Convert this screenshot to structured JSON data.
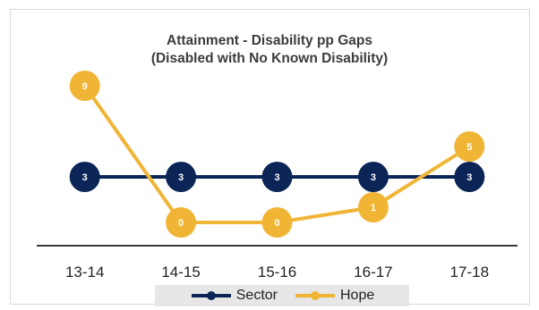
{
  "chart_data": {
    "type": "line",
    "title": "Attainment - Disability pp Gaps",
    "subtitle": "(Disabled with No Known Disability)",
    "categories": [
      "13-14",
      "14-15",
      "15-16",
      "16-17",
      "17-18"
    ],
    "ylim": [
      -3,
      12
    ],
    "grid": false,
    "legend_position": "bottom",
    "series": [
      {
        "name": "Sector",
        "values": [
          3,
          3,
          3,
          3,
          3
        ],
        "color": "#0b2556"
      },
      {
        "name": "Hope",
        "values": [
          9,
          0,
          0,
          1,
          5
        ],
        "color": "#f0b535"
      }
    ]
  }
}
